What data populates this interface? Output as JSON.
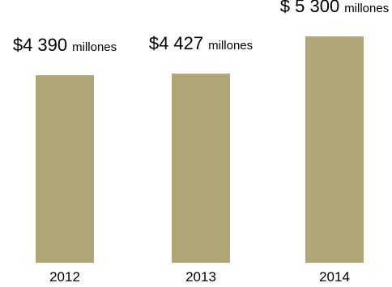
{
  "chart_data": {
    "type": "bar",
    "categories": [
      "2012",
      "2013",
      "2014"
    ],
    "values": [
      4390,
      4427,
      5300
    ],
    "data_labels": [
      {
        "main": "$4 390",
        "unit": "millones"
      },
      {
        "main": "$4 427",
        "unit": "millones"
      },
      {
        "main": "$ 5 300",
        "unit": "millones"
      }
    ],
    "title": "",
    "xlabel": "",
    "ylabel": "",
    "grid": false,
    "bar_color": "#b1a776"
  }
}
